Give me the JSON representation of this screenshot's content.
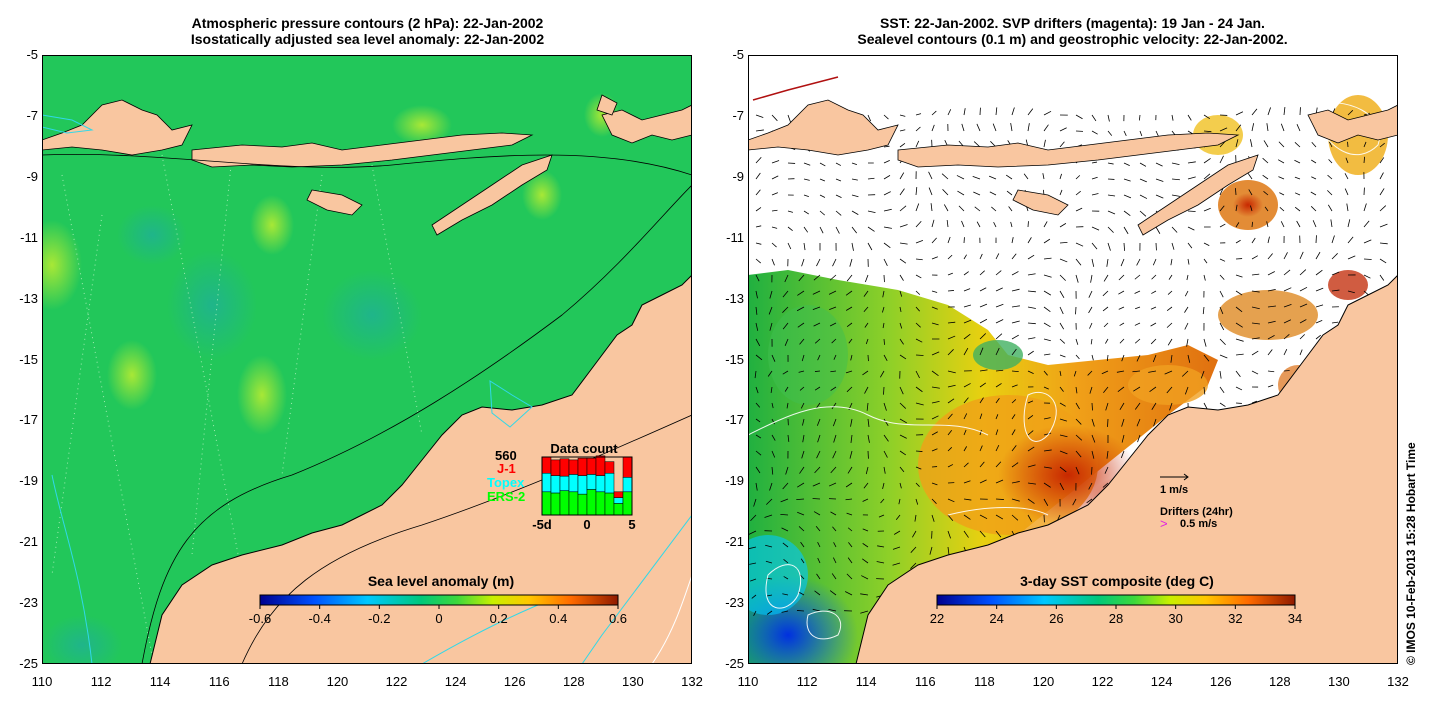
{
  "left_panel": {
    "title_line1": "Atmospheric pressure contours (2 hPa): 22-Jan-2002",
    "title_line2": "Isostatically adjusted sea level anomaly: 22-Jan-2002",
    "colorbar": {
      "title": "Sea level anomaly (m)",
      "ticks": [
        "-0.6",
        "-0.4",
        "-0.2",
        "0",
        "0.2",
        "0.4",
        "0.6"
      ]
    },
    "data_count": {
      "title": "Data count",
      "max_label": "560",
      "legend": [
        {
          "label": "J-1",
          "color": "#ff0000"
        },
        {
          "label": "Topex",
          "color": "#00ffff"
        },
        {
          "label": "ERS-2",
          "color": "#00ff00"
        }
      ],
      "x_labels": [
        "-5d",
        "0",
        "5"
      ],
      "bars": [
        {
          "ers2": 0.4,
          "topex": 0.32,
          "j1": 0.28
        },
        {
          "ers2": 0.38,
          "topex": 0.3,
          "j1": 0.27
        },
        {
          "ers2": 0.42,
          "topex": 0.25,
          "j1": 0.3
        },
        {
          "ers2": 0.4,
          "topex": 0.3,
          "j1": 0.25
        },
        {
          "ers2": 0.36,
          "topex": 0.32,
          "j1": 0.3
        },
        {
          "ers2": 0.44,
          "topex": 0.26,
          "j1": 0.28
        },
        {
          "ers2": 0.4,
          "topex": 0.28,
          "j1": 0.34
        },
        {
          "ers2": 0.38,
          "topex": 0.34,
          "j1": 0.2
        },
        {
          "ers2": 0.2,
          "topex": 0.1,
          "j1": 0.1
        },
        {
          "ers2": 0.4,
          "topex": 0.25,
          "j1": 0.35
        }
      ]
    }
  },
  "right_panel": {
    "title_line1": "SST: 22-Jan-2002. SVP drifters (magenta): 19 Jan - 24 Jan.",
    "title_line2": "Sealevel contours (0.1 m) and geostrophic velocity: 22-Jan-2002.",
    "colorbar": {
      "title": "3-day SST composite (deg C)",
      "ticks": [
        "22",
        "24",
        "26",
        "28",
        "30",
        "32",
        "34"
      ]
    },
    "velocity_scale_label": "1 m/s",
    "drifters_label": "Drifters (24hr)",
    "drifters_speed_label": "0.5 m/s"
  },
  "axes": {
    "x_ticks": [
      "110",
      "112",
      "114",
      "116",
      "118",
      "120",
      "122",
      "124",
      "126",
      "128",
      "130",
      "132"
    ],
    "y_ticks": [
      "-5",
      "-7",
      "-9",
      "-11",
      "-13",
      "-15",
      "-17",
      "-19",
      "-21",
      "-23",
      "-25"
    ]
  },
  "credit": "© IMOS 10-Feb-2013 15:28 Hobart Time",
  "colors": {
    "land": "#f9c6a0",
    "ocean_sla": "#22c75a",
    "white": "#ffffff"
  }
}
